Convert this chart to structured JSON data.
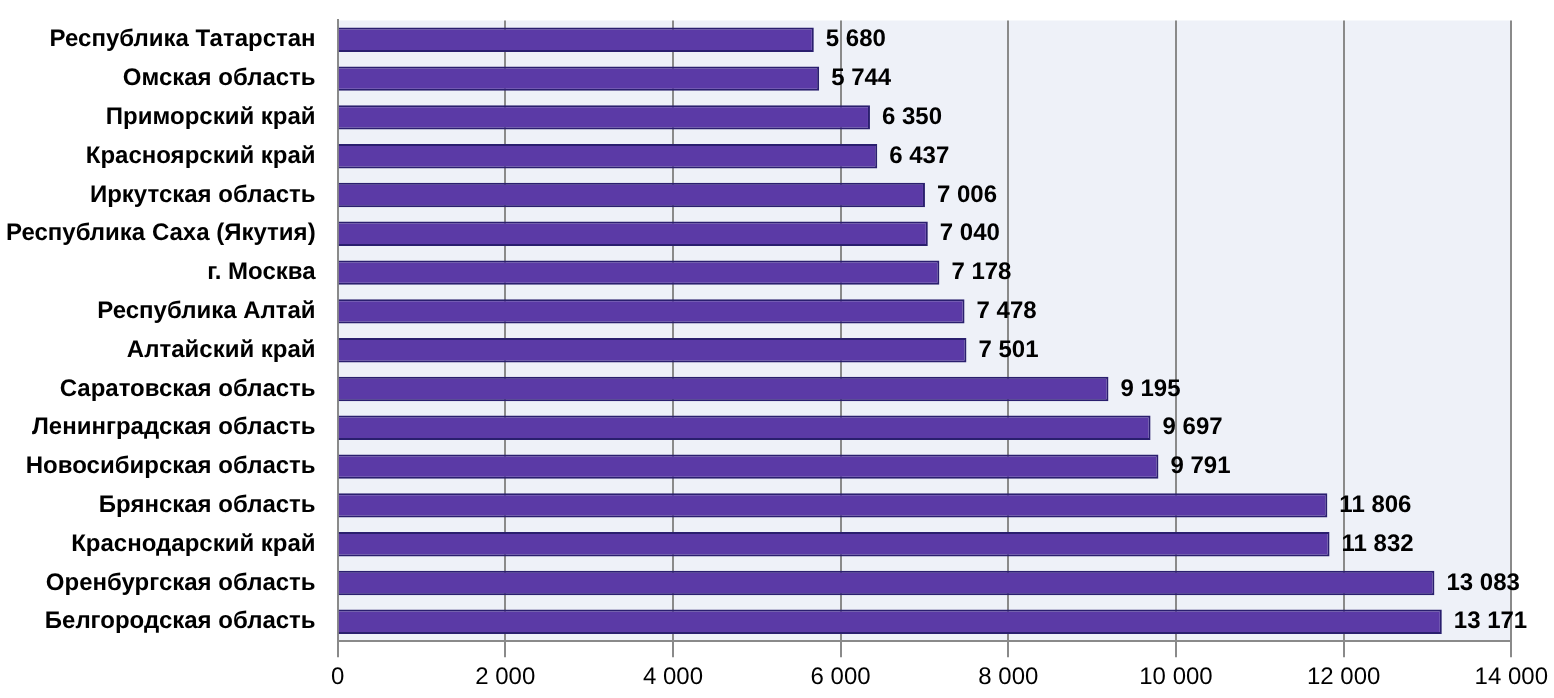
{
  "chart_data": {
    "type": "bar",
    "orientation": "horizontal",
    "categories": [
      "Республика Татарстан",
      "Омская область",
      "Приморский край",
      "Красноярский край",
      "Иркутская область",
      "Республика Саха (Якутия)",
      "г. Москва",
      "Республика Алтай",
      "Алтайский край",
      "Саратовская область",
      "Ленинградская область",
      "Новосибирская область",
      "Брянская область",
      "Краснодарский край",
      "Оренбургская область",
      "Белгородская область"
    ],
    "values": [
      5680,
      5744,
      6350,
      6437,
      7006,
      7040,
      7178,
      7478,
      7501,
      9195,
      9697,
      9791,
      11806,
      11832,
      13083,
      13171
    ],
    "value_labels": [
      "5 680",
      "5 744",
      "6 350",
      "6 437",
      "7 006",
      "7 040",
      "7 178",
      "7 478",
      "7 501",
      "9 195",
      "9 697",
      "9 791",
      "11 806",
      "11 832",
      "13 083",
      "13 171"
    ],
    "color": "#5b3aa6",
    "xlim": [
      0,
      14000
    ],
    "xticks": [
      {
        "value": 0,
        "label": "0"
      },
      {
        "value": 2000,
        "label": "2 000"
      },
      {
        "value": 4000,
        "label": "4 000"
      },
      {
        "value": 6000,
        "label": "6 000"
      },
      {
        "value": 8000,
        "label": "8 000"
      },
      {
        "value": 10000,
        "label": "10 000"
      },
      {
        "value": 12000,
        "label": "12 000"
      },
      {
        "value": 14000,
        "label": "14 000"
      }
    ],
    "grid": "x",
    "legend": false
  }
}
